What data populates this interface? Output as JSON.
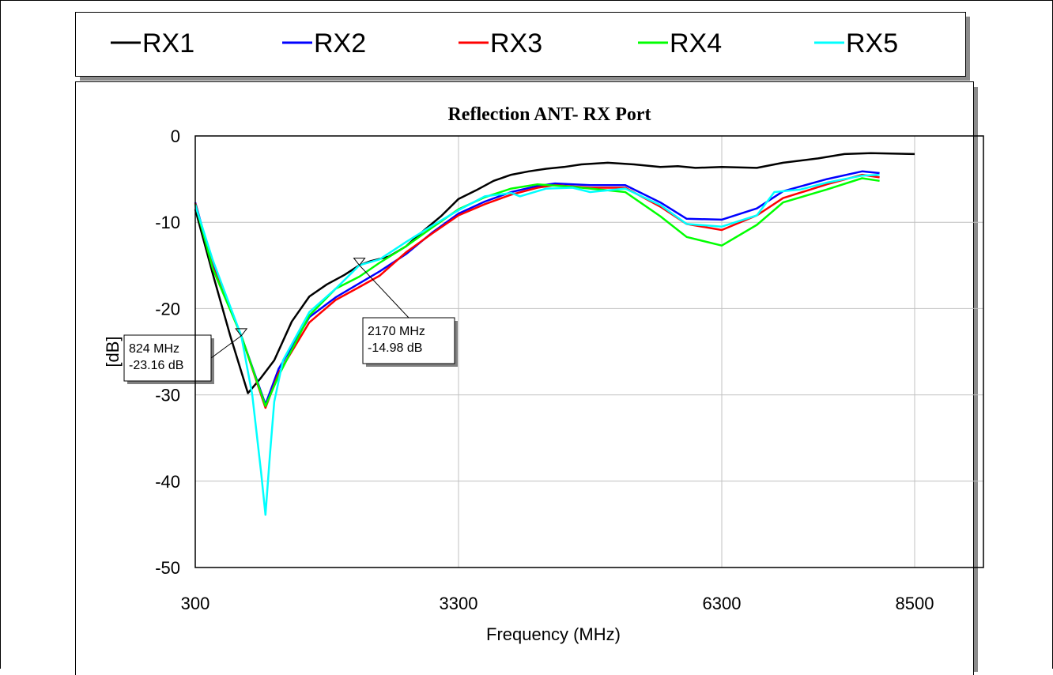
{
  "chart_data": {
    "type": "line",
    "title": "Reflection ANT- RX Port",
    "xlabel": "Frequency (MHz)",
    "ylabel": "[dB]",
    "x_tick_labels": [
      "300",
      "3300",
      "6300",
      "8500"
    ],
    "y_tick_labels": [
      "0",
      "-10",
      "-20",
      "-30",
      "-40",
      "-50"
    ],
    "ylim": [
      -50,
      0
    ],
    "grid": true,
    "legend_position": "top",
    "series": [
      {
        "name": "RX1",
        "color": "#000000",
        "points": [
          [
            300,
            -8.5
          ],
          [
            500,
            -16
          ],
          [
            700,
            -23.2
          ],
          [
            900,
            -29.8
          ],
          [
            1050,
            -28
          ],
          [
            1200,
            -26
          ],
          [
            1400,
            -21.5
          ],
          [
            1600,
            -18.6
          ],
          [
            1800,
            -17.2
          ],
          [
            2000,
            -16.1
          ],
          [
            2170,
            -14.98
          ],
          [
            2300,
            -14.5
          ],
          [
            2500,
            -14
          ],
          [
            2700,
            -12.8
          ],
          [
            2900,
            -11
          ],
          [
            3100,
            -9.3
          ],
          [
            3300,
            -7.3
          ],
          [
            3500,
            -6.3
          ],
          [
            3700,
            -5.2
          ],
          [
            3900,
            -4.5
          ],
          [
            4100,
            -4.1
          ],
          [
            4300,
            -3.8
          ],
          [
            4500,
            -3.6
          ],
          [
            4700,
            -3.3
          ],
          [
            5000,
            -3.1
          ],
          [
            5300,
            -3.3
          ],
          [
            5600,
            -3.6
          ],
          [
            5800,
            -3.5
          ],
          [
            6000,
            -3.7
          ],
          [
            6300,
            -3.6
          ],
          [
            6700,
            -3.7
          ],
          [
            7000,
            -3.1
          ],
          [
            7400,
            -2.6
          ],
          [
            7700,
            -2.1
          ],
          [
            8000,
            -2.0
          ],
          [
            8500,
            -2.1
          ]
        ]
      },
      {
        "name": "RX2",
        "color": "#0000ff",
        "points": [
          [
            300,
            -7.7
          ],
          [
            500,
            -15
          ],
          [
            824,
            -23.16
          ],
          [
            1100,
            -31.1
          ],
          [
            1250,
            -27
          ],
          [
            1600,
            -21
          ],
          [
            1900,
            -18.7
          ],
          [
            2100,
            -17.5
          ],
          [
            2400,
            -15.7
          ],
          [
            2700,
            -13.7
          ],
          [
            3000,
            -11.2
          ],
          [
            3300,
            -9
          ],
          [
            3600,
            -7.6
          ],
          [
            3900,
            -6.5
          ],
          [
            4200,
            -5.8
          ],
          [
            4400,
            -5.5
          ],
          [
            4800,
            -5.7
          ],
          [
            5200,
            -5.7
          ],
          [
            5600,
            -7.7
          ],
          [
            5900,
            -9.6
          ],
          [
            6300,
            -9.7
          ],
          [
            6700,
            -8.4
          ],
          [
            7000,
            -6.4
          ],
          [
            7500,
            -5
          ],
          [
            7900,
            -4.1
          ],
          [
            8100,
            -4.3
          ]
        ]
      },
      {
        "name": "RX3",
        "color": "#ff0000",
        "points": [
          [
            300,
            -7.8
          ],
          [
            500,
            -15.2
          ],
          [
            824,
            -23.16
          ],
          [
            1100,
            -31.5
          ],
          [
            1250,
            -27.5
          ],
          [
            1600,
            -21.6
          ],
          [
            1900,
            -19
          ],
          [
            2170,
            -17.5
          ],
          [
            2400,
            -16.2
          ],
          [
            2700,
            -13.5
          ],
          [
            3000,
            -11.3
          ],
          [
            3300,
            -9.2
          ],
          [
            3600,
            -7.9
          ],
          [
            3900,
            -6.8
          ],
          [
            4200,
            -6
          ],
          [
            4400,
            -5.7
          ],
          [
            4800,
            -6
          ],
          [
            5200,
            -6
          ],
          [
            5600,
            -8.2
          ],
          [
            5900,
            -10.2
          ],
          [
            6300,
            -10.9
          ],
          [
            6700,
            -9.2
          ],
          [
            7000,
            -7.2
          ],
          [
            7500,
            -5.6
          ],
          [
            7900,
            -4.5
          ],
          [
            8100,
            -4.8
          ]
        ]
      },
      {
        "name": "RX4",
        "color": "#00ff00",
        "points": [
          [
            300,
            -7.9
          ],
          [
            500,
            -15.4
          ],
          [
            824,
            -23.16
          ],
          [
            1100,
            -31.3
          ],
          [
            1250,
            -27.8
          ],
          [
            1600,
            -20.8
          ],
          [
            1900,
            -17.7
          ],
          [
            2170,
            -16.3
          ],
          [
            2400,
            -14.7
          ],
          [
            2700,
            -12.8
          ],
          [
            3000,
            -10.6
          ],
          [
            3300,
            -8.5
          ],
          [
            3600,
            -7.1
          ],
          [
            3900,
            -6.1
          ],
          [
            4200,
            -5.6
          ],
          [
            4600,
            -5.9
          ],
          [
            4900,
            -6.2
          ],
          [
            5200,
            -6.5
          ],
          [
            5600,
            -9.3
          ],
          [
            5900,
            -11.7
          ],
          [
            6300,
            -12.7
          ],
          [
            6700,
            -10.3
          ],
          [
            7000,
            -7.7
          ],
          [
            7500,
            -6.2
          ],
          [
            7900,
            -4.9
          ],
          [
            8100,
            -5.2
          ]
        ]
      },
      {
        "name": "RX5",
        "color": "#00ffff",
        "points": [
          [
            300,
            -8
          ],
          [
            500,
            -14.4
          ],
          [
            824,
            -23.16
          ],
          [
            950,
            -30
          ],
          [
            1050,
            -39
          ],
          [
            1100,
            -43.9
          ],
          [
            1150,
            -37
          ],
          [
            1200,
            -30.8
          ],
          [
            1300,
            -26
          ],
          [
            1600,
            -20.4
          ],
          [
            1900,
            -17.7
          ],
          [
            2170,
            -14.98
          ],
          [
            2400,
            -14.3
          ],
          [
            2700,
            -12.3
          ],
          [
            3000,
            -10.4
          ],
          [
            3300,
            -8.6
          ],
          [
            3600,
            -7
          ],
          [
            3900,
            -6.6
          ],
          [
            4000,
            -7
          ],
          [
            4300,
            -6.1
          ],
          [
            4600,
            -6
          ],
          [
            4800,
            -6.5
          ],
          [
            5200,
            -6.1
          ],
          [
            5600,
            -8
          ],
          [
            5900,
            -10.2
          ],
          [
            6300,
            -10.5
          ],
          [
            6700,
            -9.2
          ],
          [
            6900,
            -6.5
          ],
          [
            7200,
            -6.2
          ],
          [
            7500,
            -5.4
          ],
          [
            7900,
            -4.6
          ],
          [
            8100,
            -4.5
          ]
        ]
      }
    ],
    "annotations": [
      {
        "lines": [
          "824 MHz",
          "-23.16 dB"
        ],
        "x": 824,
        "y": -23.16
      },
      {
        "lines": [
          "2170 MHz",
          "-14.98 dB"
        ],
        "x": 2170,
        "y": -14.98
      }
    ]
  }
}
